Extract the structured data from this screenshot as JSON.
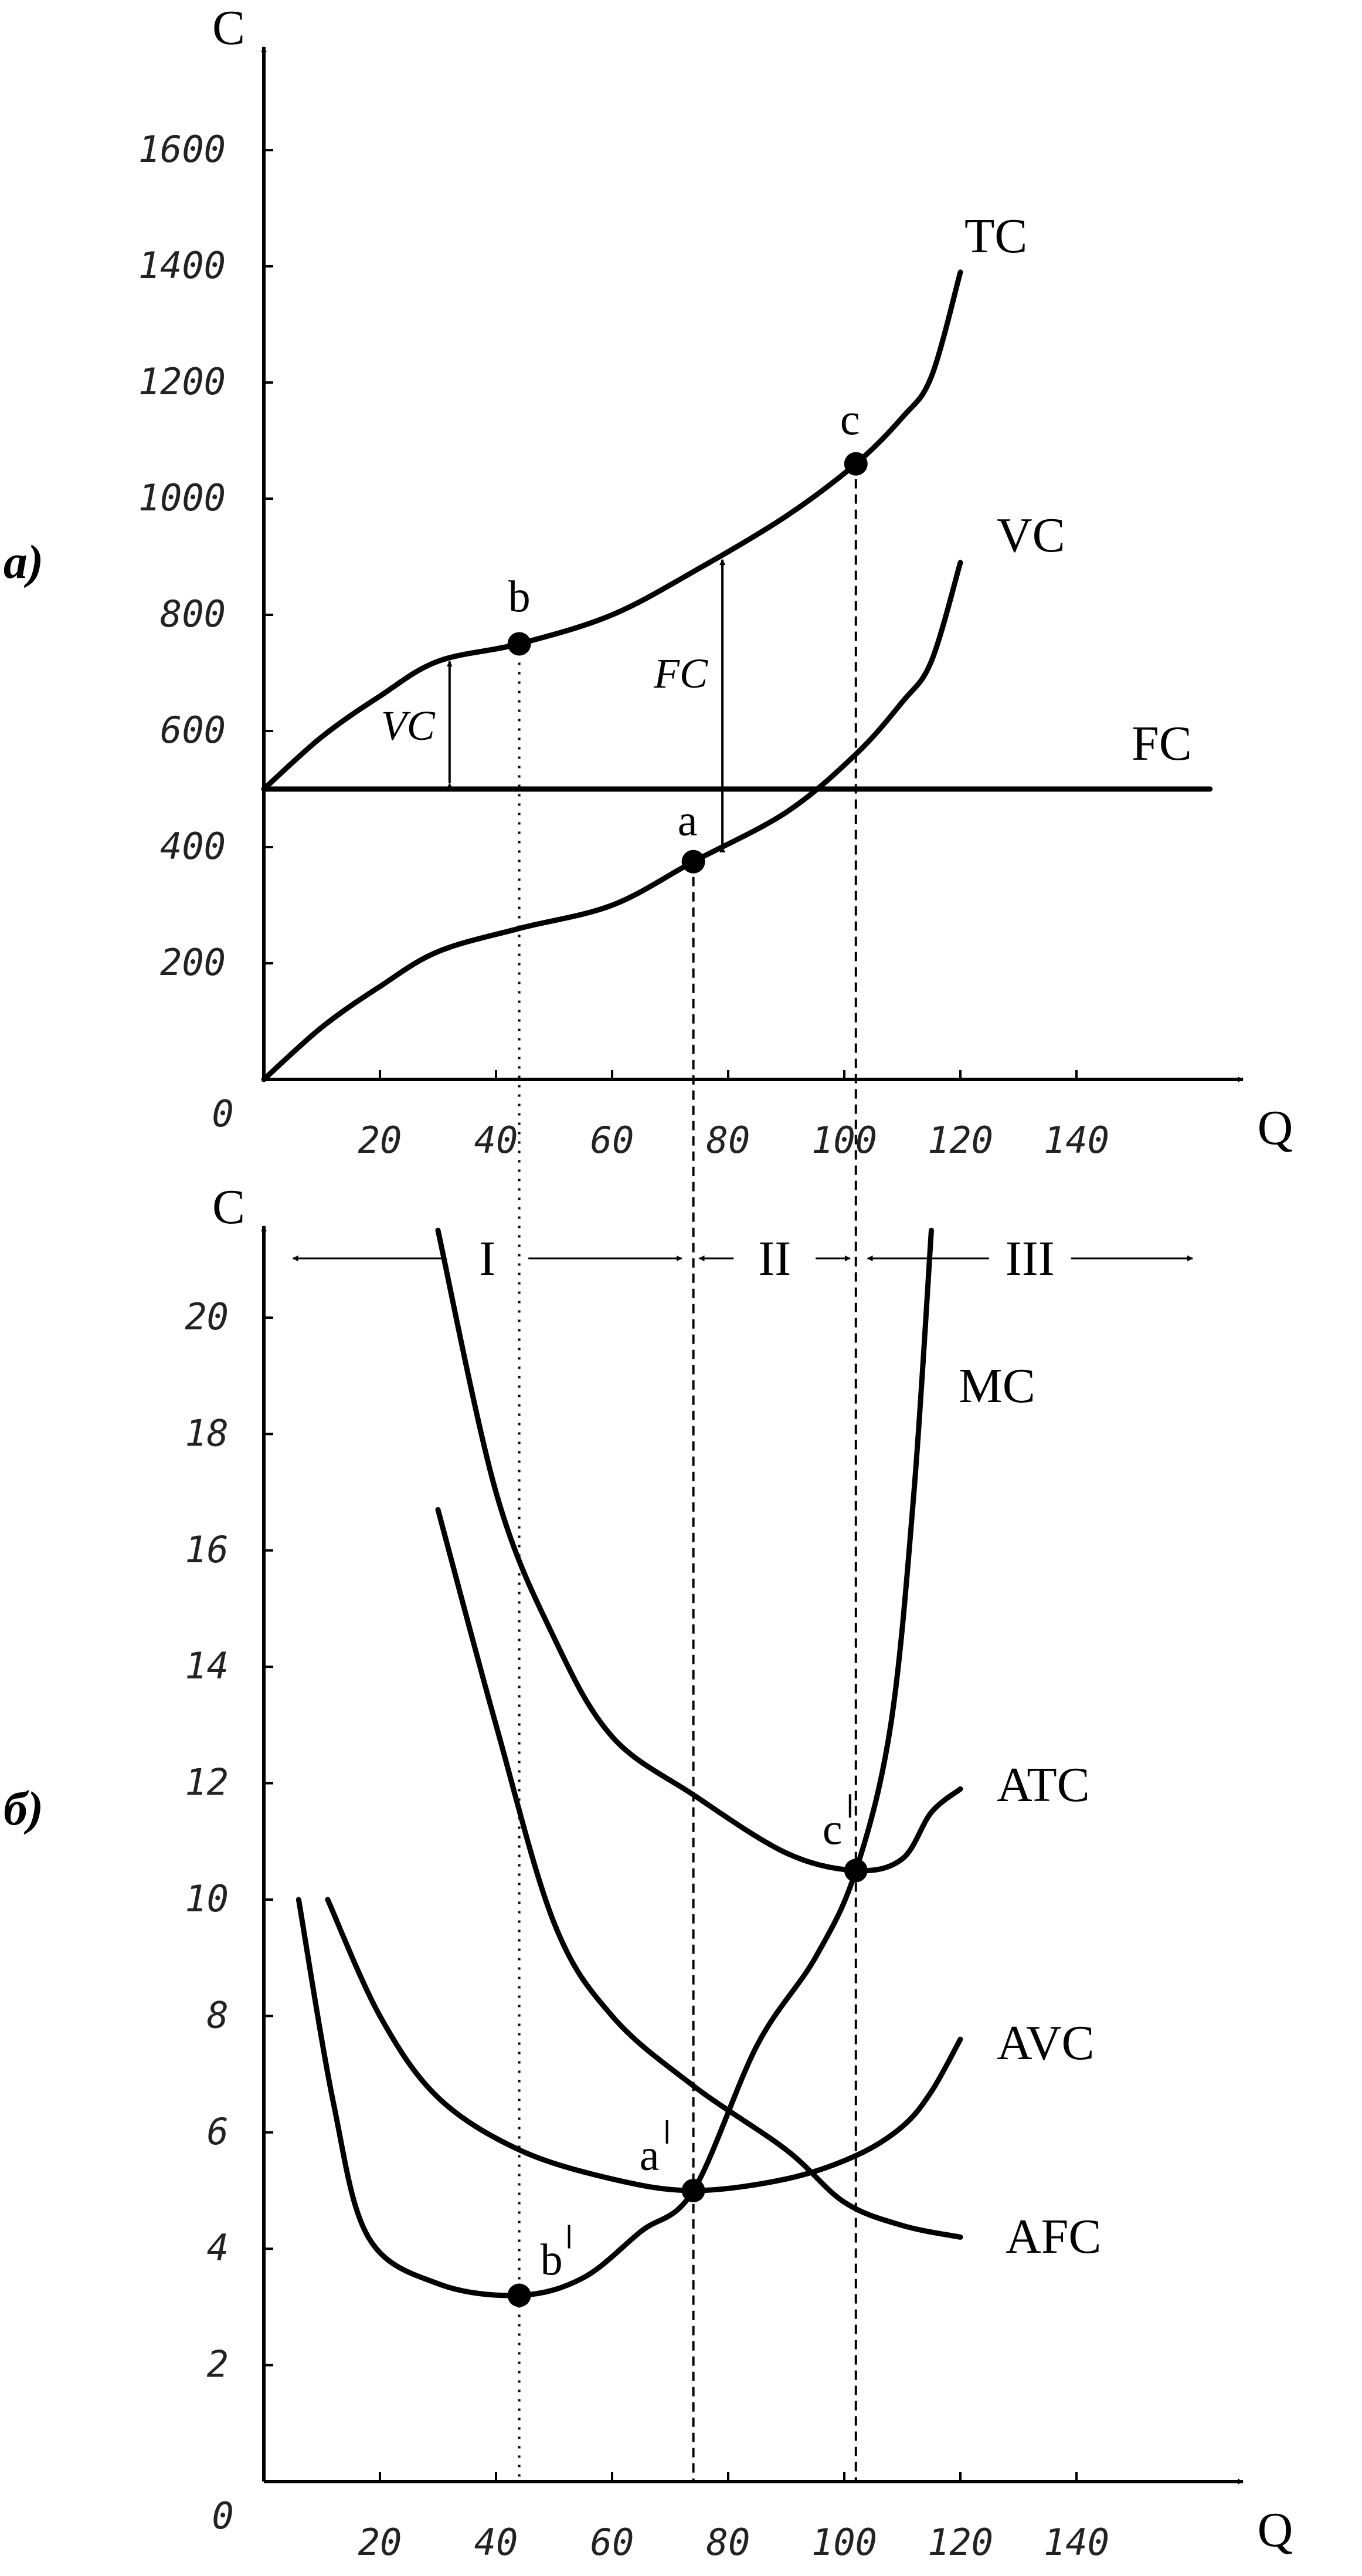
{
  "chart_data": [
    {
      "panel": "a)",
      "type": "line",
      "ylabel": "C",
      "xlabel": "Q",
      "origin_label": "0",
      "xlim": [
        0,
        168
      ],
      "ylim": [
        0,
        1740
      ],
      "x_ticks": [
        20,
        40,
        60,
        80,
        100,
        120,
        140
      ],
      "y_ticks": [
        200,
        400,
        600,
        800,
        1000,
        1200,
        1400,
        1600
      ],
      "series": [
        {
          "name": "TC",
          "points": [
            [
              0,
              500
            ],
            [
              10,
              590
            ],
            [
              20,
              660
            ],
            [
              30,
              720
            ],
            [
              44,
              750
            ],
            [
              60,
              800
            ],
            [
              75,
              880
            ],
            [
              90,
              970
            ],
            [
              102,
              1060
            ],
            [
              110,
              1140
            ],
            [
              115,
              1210
            ],
            [
              120,
              1390
            ]
          ]
        },
        {
          "name": "VC",
          "points": [
            [
              0,
              0
            ],
            [
              10,
              90
            ],
            [
              20,
              160
            ],
            [
              30,
              220
            ],
            [
              44,
              260
            ],
            [
              60,
              300
            ],
            [
              74,
              375
            ],
            [
              90,
              460
            ],
            [
              102,
              560
            ],
            [
              110,
              650
            ],
            [
              115,
              720
            ],
            [
              120,
              890
            ]
          ]
        },
        {
          "name": "FC",
          "points": [
            [
              0,
              500
            ],
            [
              163,
              500
            ]
          ]
        }
      ],
      "points": [
        {
          "label": "a",
          "x": 74,
          "y": 375
        },
        {
          "label": "b",
          "x": 44,
          "y": 750
        },
        {
          "label": "c",
          "x": 102,
          "y": 1060
        }
      ],
      "annotations": [
        "VC",
        "FC"
      ]
    },
    {
      "panel": "б)",
      "type": "line",
      "ylabel": "C",
      "xlabel": "Q",
      "origin_label": "0",
      "xlim": [
        0,
        168
      ],
      "ylim": [
        0,
        22.5
      ],
      "x_ticks": [
        20,
        40,
        60,
        80,
        100,
        120,
        140
      ],
      "y_ticks": [
        2,
        4,
        6,
        8,
        10,
        12,
        14,
        16,
        18,
        20
      ],
      "regions": [
        "I",
        "II",
        "III"
      ],
      "series": [
        {
          "name": "MC",
          "points": [
            [
              6,
              10
            ],
            [
              12,
              6.5
            ],
            [
              18,
              4.2
            ],
            [
              30,
              3.4
            ],
            [
              44,
              3.2
            ],
            [
              55,
              3.5
            ],
            [
              65,
              4.3
            ],
            [
              74,
              5
            ],
            [
              85,
              7.5
            ],
            [
              95,
              9
            ],
            [
              102,
              10.5
            ],
            [
              108,
              13
            ],
            [
              112,
              17
            ],
            [
              115,
              21.5
            ]
          ]
        },
        {
          "name": "ATC",
          "points": [
            [
              30,
              21.5
            ],
            [
              40,
              17
            ],
            [
              50,
              14.5
            ],
            [
              60,
              12.8
            ],
            [
              74,
              11.8
            ],
            [
              90,
              10.8
            ],
            [
              102,
              10.5
            ],
            [
              110,
              10.7
            ],
            [
              115,
              11.5
            ],
            [
              120,
              11.9
            ]
          ]
        },
        {
          "name": "AVC",
          "points": [
            [
              11,
              10
            ],
            [
              20,
              8
            ],
            [
              30,
              6.6
            ],
            [
              44,
              5.7
            ],
            [
              60,
              5.2
            ],
            [
              74,
              5
            ],
            [
              90,
              5.2
            ],
            [
              102,
              5.6
            ],
            [
              110,
              6.1
            ],
            [
              115,
              6.7
            ],
            [
              120,
              7.6
            ]
          ]
        },
        {
          "name": "AFC",
          "points": [
            [
              30,
              16.7
            ],
            [
              40,
              13
            ],
            [
              50,
              9.6
            ],
            [
              60,
              8
            ],
            [
              74,
              6.8
            ],
            [
              90,
              5.7
            ],
            [
              100,
              4.8
            ],
            [
              110,
              4.4
            ],
            [
              120,
              4.2
            ]
          ]
        }
      ],
      "points": [
        {
          "label": "a",
          "x": 74,
          "y": 5
        },
        {
          "label": "b",
          "x": 44,
          "y": 3.2
        },
        {
          "label": "c",
          "x": 102,
          "y": 10.5
        }
      ]
    }
  ]
}
